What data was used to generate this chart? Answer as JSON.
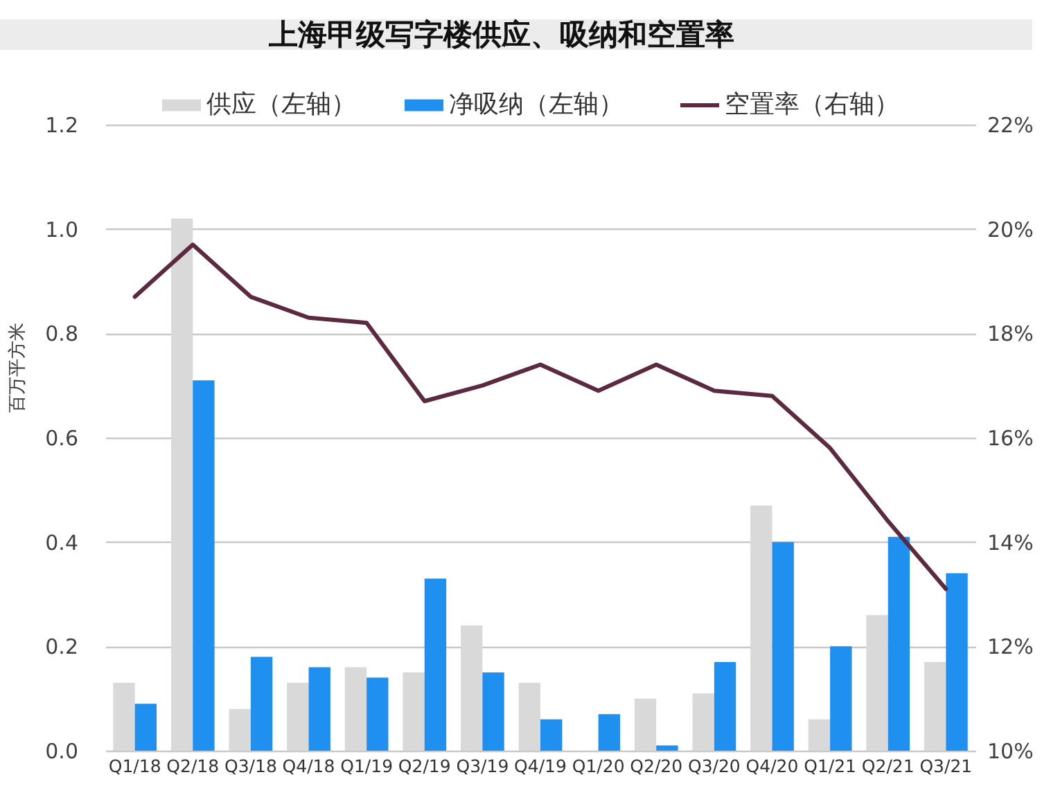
{
  "chart_data": {
    "type": "bar",
    "title": "上海甲级写字楼供应、吸纳和空置率",
    "ylabel": "百万平方米",
    "categories": [
      "Q1/18",
      "Q2/18",
      "Q3/18",
      "Q4/18",
      "Q1/19",
      "Q2/19",
      "Q3/19",
      "Q4/19",
      "Q1/20",
      "Q2/20",
      "Q3/20",
      "Q4/20",
      "Q1/21",
      "Q2/21",
      "Q3/21"
    ],
    "series": [
      {
        "name": "供应（左轴）",
        "color": "#d9d9d9",
        "values": [
          0.13,
          1.02,
          0.08,
          0.13,
          0.16,
          0.15,
          0.24,
          0.13,
          0,
          0.1,
          0.11,
          0.47,
          0.06,
          0.26,
          0.17
        ]
      },
      {
        "name": "净吸纳（左轴）",
        "color": "#1f8ff0",
        "values": [
          0.09,
          0.71,
          0.18,
          0.16,
          0.14,
          0.33,
          0.15,
          0.06,
          0.07,
          0.01,
          0.17,
          0.4,
          0.2,
          0.41,
          0.34
        ]
      },
      {
        "name": "空置率（右轴）",
        "type": "line",
        "axis": "y2",
        "color": "#5c2a40",
        "values": [
          18.7,
          19.7,
          18.7,
          18.3,
          18.2,
          16.7,
          17.0,
          17.4,
          16.9,
          17.4,
          16.9,
          16.8,
          15.8,
          14.4,
          13.1
        ]
      }
    ],
    "ylim": [
      0,
      1.2
    ],
    "yticks": [
      {
        "value": 0,
        "label": "0.0"
      },
      0.2,
      0.4,
      0.6,
      0.8,
      {
        "value": 1,
        "label": "1.0"
      },
      1.2
    ],
    "y2lim": [
      10,
      22
    ],
    "y2ticks": [
      {
        "value": 10,
        "label": "10%"
      },
      {
        "value": 12,
        "label": "12%"
      },
      {
        "value": 14,
        "label": "14%"
      },
      {
        "value": 16,
        "label": "16%"
      },
      {
        "value": 18,
        "label": "18%"
      },
      {
        "value": 20,
        "label": "20%"
      },
      {
        "value": 22,
        "label": "22%"
      }
    ],
    "grid": "y",
    "legend": "top"
  }
}
